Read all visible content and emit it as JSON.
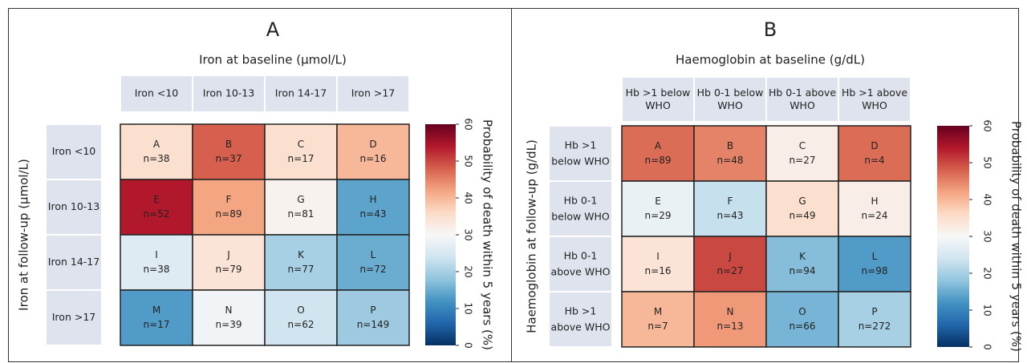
{
  "chart_data": [
    {
      "type": "heatmap",
      "title": "A",
      "x_label": "Iron at baseline (μmol/L)",
      "y_label": "Iron at follow-up (μmol/L)",
      "x_categories": [
        "Iron <10",
        "Iron 10-13",
        "Iron 14-17",
        "Iron >17"
      ],
      "y_categories": [
        "Iron <10",
        "Iron 10-13",
        "Iron 14-17",
        "Iron >17"
      ],
      "values": [
        [
          35,
          48,
          35,
          40
        ],
        [
          54,
          42,
          31,
          14
        ],
        [
          26,
          34,
          20,
          15
        ],
        [
          13,
          29,
          24,
          19
        ]
      ],
      "cell_letters": [
        [
          "A",
          "B",
          "C",
          "D"
        ],
        [
          "E",
          "F",
          "G",
          "H"
        ],
        [
          "I",
          "J",
          "K",
          "L"
        ],
        [
          "M",
          "N",
          "O",
          "P"
        ]
      ],
      "cell_labels": [
        [
          "n=38",
          "n=37",
          "n=17",
          "n=16"
        ],
        [
          "n=52",
          "n=89",
          "n=81",
          "n=43"
        ],
        [
          "n=38",
          "n=79",
          "n=77",
          "n=72"
        ],
        [
          "n=17",
          "n=39",
          "n=62",
          "n=149"
        ]
      ],
      "colorbar_label": "Probability of death within 5 years (%)",
      "zlim": [
        0,
        60
      ],
      "zticks": [
        0,
        10,
        20,
        30,
        40,
        50,
        60
      ],
      "colormap": [
        "#053061",
        "#2166ac",
        "#4393c3",
        "#92c5de",
        "#d1e5f0",
        "#f7f7f7",
        "#fddbc7",
        "#f4a582",
        "#d6604d",
        "#b2182b",
        "#67001f"
      ]
    },
    {
      "type": "heatmap",
      "title": "B",
      "x_label": "Haemoglobin at baseline (g/dL)",
      "y_label": "Haemoglobin at follow-up (g/dL)",
      "x_categories": [
        [
          "Hb >1 below",
          "WHO"
        ],
        [
          "Hb 0-1 below",
          "WHO"
        ],
        [
          "Hb 0-1 above",
          "WHO"
        ],
        [
          "Hb >1 above",
          "WHO"
        ]
      ],
      "y_categories": [
        [
          "Hb >1",
          "below WHO"
        ],
        [
          "Hb 0-1",
          "below WHO"
        ],
        [
          "Hb 0-1",
          "above WHO"
        ],
        [
          "Hb >1",
          "above WHO"
        ]
      ],
      "values": [
        [
          47,
          45,
          32,
          47
        ],
        [
          28,
          23,
          35,
          32
        ],
        [
          34,
          50,
          17,
          13
        ],
        [
          40,
          43,
          16,
          20
        ]
      ],
      "cell_letters": [
        [
          "A",
          "B",
          "C",
          "D"
        ],
        [
          "E",
          "F",
          "G",
          "H"
        ],
        [
          "I",
          "J",
          "K",
          "L"
        ],
        [
          "M",
          "N",
          "O",
          "P"
        ]
      ],
      "cell_labels": [
        [
          "n=89",
          "n=48",
          "n=27",
          "n=4"
        ],
        [
          "n=29",
          "n=43",
          "n=49",
          "n=24"
        ],
        [
          "n=16",
          "n=27",
          "n=94",
          "n=98"
        ],
        [
          "n=7",
          "n=13",
          "n=66",
          "n=272"
        ]
      ],
      "colorbar_label": "Probability of death within 5 years (%)",
      "zlim": [
        0,
        60
      ],
      "zticks": [
        0,
        10,
        20,
        30,
        40,
        50,
        60
      ],
      "colormap": [
        "#053061",
        "#2166ac",
        "#4393c3",
        "#92c5de",
        "#d1e5f0",
        "#f7f7f7",
        "#fddbc7",
        "#f4a582",
        "#d6604d",
        "#b2182b",
        "#67001f"
      ]
    }
  ]
}
